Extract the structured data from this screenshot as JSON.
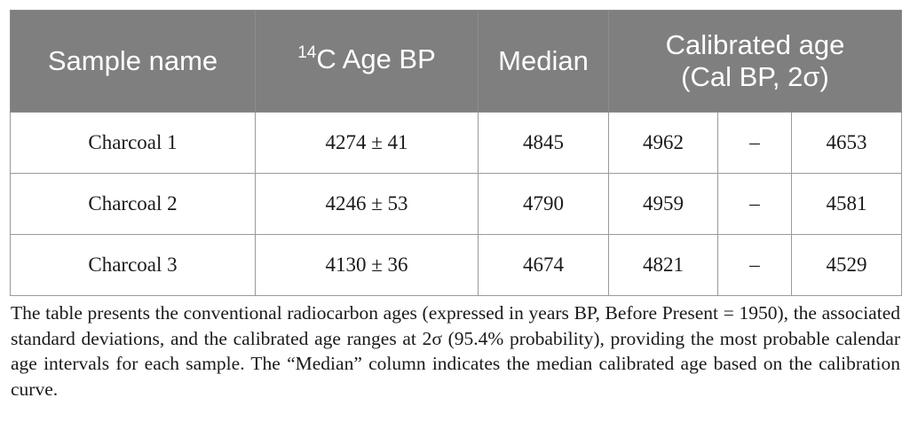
{
  "table": {
    "headers": {
      "sample_name": "Sample name",
      "c14_sup": "14",
      "c14_rest": "C Age BP",
      "median": "Median",
      "calibrated_line1": "Calibrated age",
      "calibrated_line2": "(Cal BP, 2σ)"
    },
    "rows": [
      {
        "sample": "Charcoal 1",
        "c14_age": "4274 ± 41",
        "median": "4845",
        "cal_from": "4962",
        "dash": "–",
        "cal_to": "4653"
      },
      {
        "sample": "Charcoal 2",
        "c14_age": "4246 ± 53",
        "median": "4790",
        "cal_from": "4959",
        "dash": "–",
        "cal_to": "4581"
      },
      {
        "sample": "Charcoal 3",
        "c14_age": "4130 ± 36",
        "median": "4674",
        "cal_from": "4821",
        "dash": "–",
        "cal_to": "4529"
      }
    ]
  },
  "caption": "The table presents the conventional radiocarbon ages (expressed in years BP, Before Present = 1950), the associated standard deviations, and the calibrated age ranges at 2σ (95.4% probability), providing the most probable calendar age intervals for each sample. The “Median” column indicates the median calibrated age based on the calibration curve."
}
